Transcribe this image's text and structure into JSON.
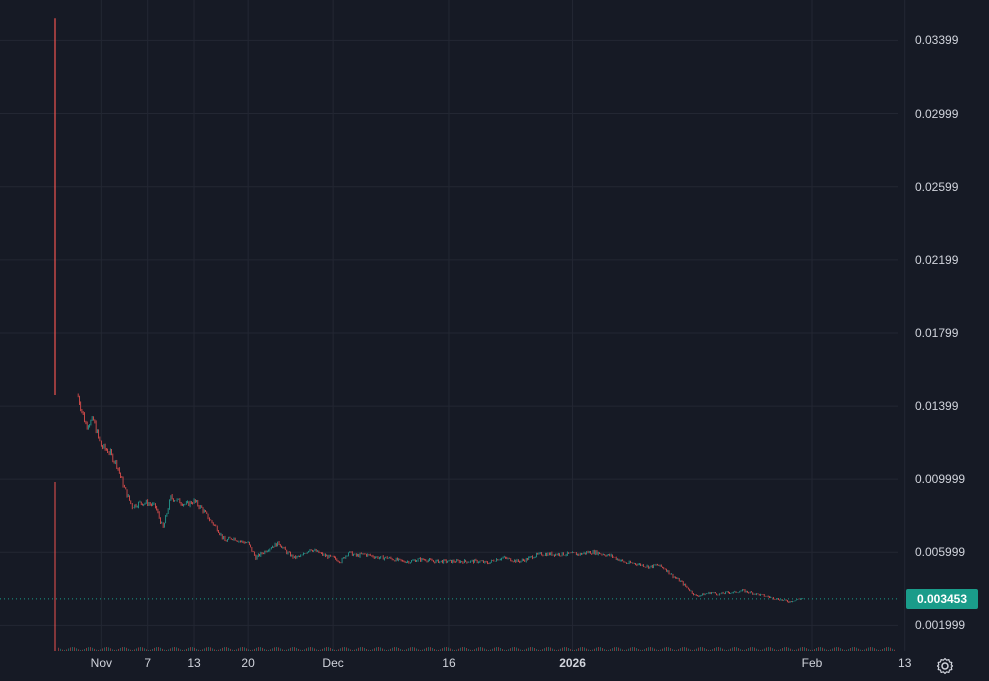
{
  "chart_data": {
    "type": "candlestick",
    "title": "",
    "xlabel": "",
    "ylabel": "",
    "ylim": [
      0.0006,
      0.0362
    ],
    "grid": true,
    "colors": {
      "background": "#161a25",
      "grid": "#232733",
      "up": "#26a69a",
      "down": "#ef5350",
      "text": "#d1d4dc",
      "last_price": "#1a9c8a"
    },
    "y_ticks": [
      "0.03399",
      "0.02999",
      "0.02599",
      "0.02199",
      "0.01799",
      "0.01399",
      "0.009999",
      "0.005999",
      "0.001999"
    ],
    "x_ticks": [
      {
        "label": "Nov",
        "bold": false
      },
      {
        "label": "7",
        "bold": false
      },
      {
        "label": "13",
        "bold": false
      },
      {
        "label": "20",
        "bold": false
      },
      {
        "label": "Dec",
        "bold": false
      },
      {
        "label": "16",
        "bold": false
      },
      {
        "label": "2026",
        "bold": true
      },
      {
        "label": "Feb",
        "bold": false
      },
      {
        "label": "13",
        "bold": false
      }
    ],
    "last_price": "0.003453",
    "price_path": [
      [
        "2025-10-29",
        0.0145
      ],
      [
        "2025-10-30",
        0.013
      ],
      [
        "2025-10-31",
        0.0132
      ],
      [
        "2025-11-01",
        0.0118
      ],
      [
        "2025-11-02",
        0.0115
      ],
      [
        "2025-11-03",
        0.0108
      ],
      [
        "2025-11-04",
        0.0095
      ],
      [
        "2025-11-05",
        0.0085
      ],
      [
        "2025-11-06",
        0.0087
      ],
      [
        "2025-11-07",
        0.0087
      ],
      [
        "2025-11-08",
        0.0085
      ],
      [
        "2025-11-09",
        0.0073
      ],
      [
        "2025-11-10",
        0.009
      ],
      [
        "2025-11-11",
        0.0088
      ],
      [
        "2025-11-12",
        0.0086
      ],
      [
        "2025-11-13",
        0.0088
      ],
      [
        "2025-11-14",
        0.0084
      ],
      [
        "2025-11-15",
        0.0078
      ],
      [
        "2025-11-16",
        0.0073
      ],
      [
        "2025-11-17",
        0.0066
      ],
      [
        "2025-11-18",
        0.0068
      ],
      [
        "2025-11-19",
        0.0066
      ],
      [
        "2025-11-20",
        0.0065
      ],
      [
        "2025-11-21",
        0.0057
      ],
      [
        "2025-11-22",
        0.006
      ],
      [
        "2025-11-23",
        0.0063
      ],
      [
        "2025-11-24",
        0.0065
      ],
      [
        "2025-11-25",
        0.006
      ],
      [
        "2025-11-26",
        0.0057
      ],
      [
        "2025-11-27",
        0.0058
      ],
      [
        "2025-11-28",
        0.0062
      ],
      [
        "2025-11-29",
        0.006
      ],
      [
        "2025-11-30",
        0.0058
      ],
      [
        "2025-12-01",
        0.0057
      ],
      [
        "2025-12-02",
        0.0055
      ],
      [
        "2025-12-03",
        0.006
      ],
      [
        "2025-12-04",
        0.0058
      ],
      [
        "2025-12-05",
        0.0059
      ],
      [
        "2025-12-06",
        0.0058
      ],
      [
        "2025-12-07",
        0.0057
      ],
      [
        "2025-12-08",
        0.0057
      ],
      [
        "2025-12-09",
        0.0056
      ],
      [
        "2025-12-10",
        0.0055
      ],
      [
        "2025-12-11",
        0.0055
      ],
      [
        "2025-12-12",
        0.0056
      ],
      [
        "2025-12-13",
        0.0056
      ],
      [
        "2025-12-14",
        0.0055
      ],
      [
        "2025-12-15",
        0.0055
      ],
      [
        "2025-12-16",
        0.0055
      ],
      [
        "2025-12-17",
        0.0055
      ],
      [
        "2025-12-18",
        0.0055
      ],
      [
        "2025-12-19",
        0.0055
      ],
      [
        "2025-12-20",
        0.0055
      ],
      [
        "2025-12-21",
        0.0054
      ],
      [
        "2025-12-22",
        0.0056
      ],
      [
        "2025-12-23",
        0.0057
      ],
      [
        "2025-12-24",
        0.0056
      ],
      [
        "2025-12-25",
        0.0055
      ],
      [
        "2025-12-26",
        0.0056
      ],
      [
        "2025-12-27",
        0.0058
      ],
      [
        "2025-12-28",
        0.0059
      ],
      [
        "2025-12-29",
        0.0059
      ],
      [
        "2025-12-30",
        0.0059
      ],
      [
        "2025-12-31",
        0.0059
      ],
      [
        "2026-01-01",
        0.0059
      ],
      [
        "2026-01-02",
        0.0059
      ],
      [
        "2026-01-03",
        0.006
      ],
      [
        "2026-01-04",
        0.006
      ],
      [
        "2026-01-05",
        0.0059
      ],
      [
        "2026-01-06",
        0.0058
      ],
      [
        "2026-01-07",
        0.0056
      ],
      [
        "2026-01-08",
        0.0054
      ],
      [
        "2026-01-09",
        0.0054
      ],
      [
        "2026-01-10",
        0.0053
      ],
      [
        "2026-01-11",
        0.0052
      ],
      [
        "2026-01-12",
        0.0053
      ],
      [
        "2026-01-13",
        0.0051
      ],
      [
        "2026-01-14",
        0.0047
      ],
      [
        "2026-01-15",
        0.0044
      ],
      [
        "2026-01-16",
        0.004
      ],
      [
        "2026-01-17",
        0.0036
      ],
      [
        "2026-01-18",
        0.0037
      ],
      [
        "2026-01-19",
        0.0038
      ],
      [
        "2026-01-20",
        0.0037
      ],
      [
        "2026-01-21",
        0.0038
      ],
      [
        "2026-01-22",
        0.0038
      ],
      [
        "2026-01-23",
        0.0039
      ],
      [
        "2026-01-24",
        0.0038
      ],
      [
        "2026-01-25",
        0.0037
      ],
      [
        "2026-01-26",
        0.0036
      ],
      [
        "2026-01-27",
        0.0035
      ],
      [
        "2026-01-28",
        0.0034
      ],
      [
        "2026-01-29",
        0.0033
      ],
      [
        "2026-01-30",
        0.0034
      ],
      [
        "2026-01-31",
        0.0035
      ]
    ]
  }
}
